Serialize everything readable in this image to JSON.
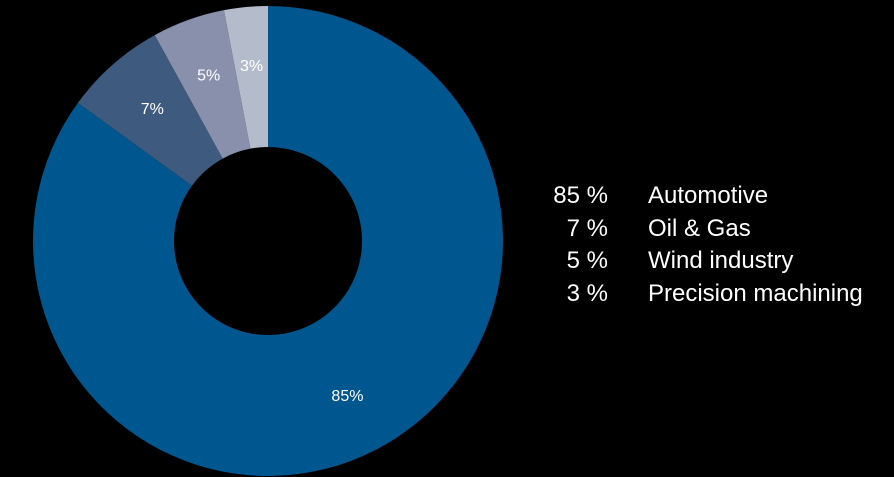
{
  "chart_data": {
    "type": "pie",
    "variant": "donut",
    "start_angle_deg": 0,
    "direction": "clockwise",
    "slices": [
      {
        "label": "Automotive",
        "value": 85,
        "data_label": "85%",
        "legend_value": "85 %",
        "color": "#00568f"
      },
      {
        "label": "Oil & Gas",
        "value": 7,
        "data_label": "7%",
        "legend_value": "7 %",
        "color": "#3f5a7f"
      },
      {
        "label": "Wind industry",
        "value": 5,
        "data_label": "5%",
        "legend_value": "5 %",
        "color": "#8890ac"
      },
      {
        "label": "Precision machining",
        "value": 3,
        "data_label": "3%",
        "legend_value": "3 %",
        "color": "#b4bccc"
      }
    ],
    "legend_position": "right",
    "background": "#000000",
    "hole_color": "#000000"
  }
}
